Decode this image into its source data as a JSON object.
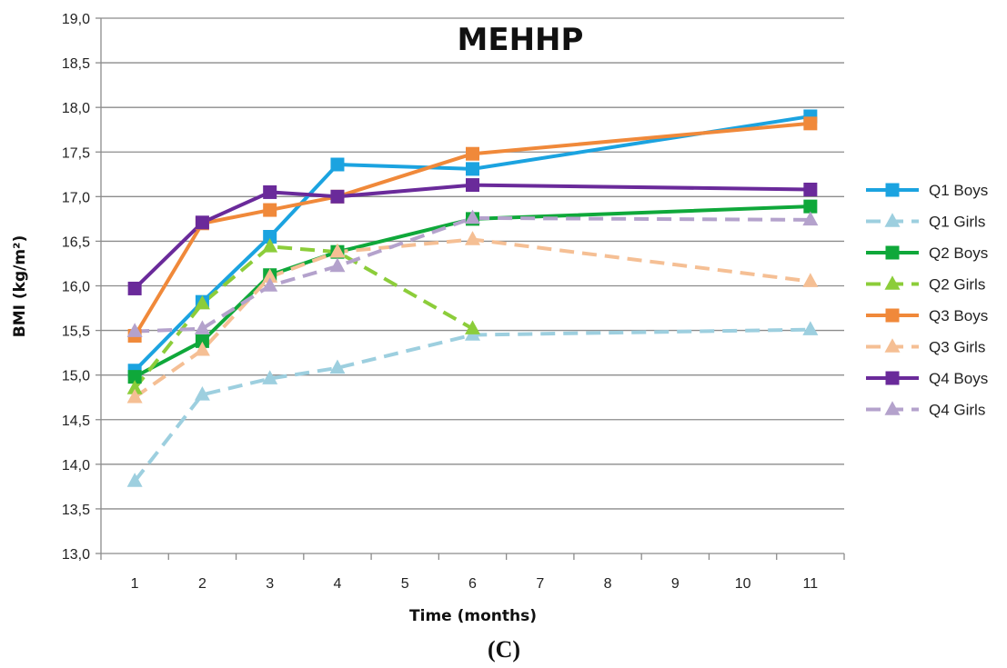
{
  "chart_data": {
    "type": "line",
    "title": "MEHHP",
    "xlabel": "Time (months)",
    "ylabel": "BMI (kg/m²)",
    "panel_label": "(C)",
    "categories": [
      "1",
      "2",
      "3",
      "4",
      "5",
      "6",
      "7",
      "8",
      "9",
      "10",
      "11"
    ],
    "ylim": [
      13.0,
      19.0
    ],
    "yticks": [
      "13,0",
      "13,5",
      "14,0",
      "14,5",
      "15,0",
      "15,5",
      "16,0",
      "16,5",
      "17,0",
      "17,5",
      "18,0",
      "18,5",
      "19,0"
    ],
    "grid": true,
    "legend_position": "right",
    "series": [
      {
        "name": "Q1 Boys",
        "color": "#1ba3e0",
        "dashed": false,
        "marker": "square",
        "x": [
          1,
          2,
          3,
          4,
          6,
          11
        ],
        "values": [
          15.05,
          15.82,
          16.55,
          17.36,
          17.31,
          17.9
        ]
      },
      {
        "name": "Q1 Girls",
        "color": "#9dcfdf",
        "dashed": true,
        "marker": "triangle",
        "x": [
          1,
          2,
          3,
          4,
          6,
          11
        ],
        "values": [
          13.81,
          14.78,
          14.96,
          15.08,
          15.45,
          15.51
        ]
      },
      {
        "name": "Q2 Boys",
        "color": "#0fa83a",
        "dashed": false,
        "marker": "square",
        "x": [
          1,
          2,
          3,
          4,
          6,
          11
        ],
        "values": [
          14.98,
          15.38,
          16.12,
          16.38,
          16.75,
          16.89
        ]
      },
      {
        "name": "Q2 Girls",
        "color": "#8ccd3a",
        "dashed": true,
        "marker": "triangle",
        "x": [
          1,
          2,
          3,
          4,
          6,
          11
        ],
        "values": [
          14.85,
          15.8,
          16.44,
          16.38,
          15.52,
          null
        ]
      },
      {
        "name": "Q3 Boys",
        "color": "#f0893a",
        "dashed": false,
        "marker": "square",
        "x": [
          1,
          2,
          3,
          4,
          6,
          11
        ],
        "values": [
          15.44,
          16.7,
          16.85,
          17.0,
          17.48,
          17.82
        ]
      },
      {
        "name": "Q3 Girls",
        "color": "#f5bf94",
        "dashed": true,
        "marker": "triangle",
        "x": [
          1,
          2,
          3,
          4,
          6,
          11
        ],
        "values": [
          14.75,
          15.28,
          16.1,
          16.38,
          16.52,
          16.05
        ]
      },
      {
        "name": "Q4 Boys",
        "color": "#6a2a9a",
        "dashed": false,
        "marker": "square",
        "x": [
          1,
          2,
          3,
          4,
          6,
          11
        ],
        "values": [
          15.97,
          16.71,
          17.05,
          17.0,
          17.13,
          17.08
        ]
      },
      {
        "name": "Q4 Girls",
        "color": "#b4a2cc",
        "dashed": true,
        "marker": "triangle",
        "x": [
          1,
          2,
          3,
          4,
          6,
          11
        ],
        "values": [
          15.49,
          15.52,
          16.0,
          16.22,
          16.76,
          16.74
        ]
      }
    ]
  }
}
